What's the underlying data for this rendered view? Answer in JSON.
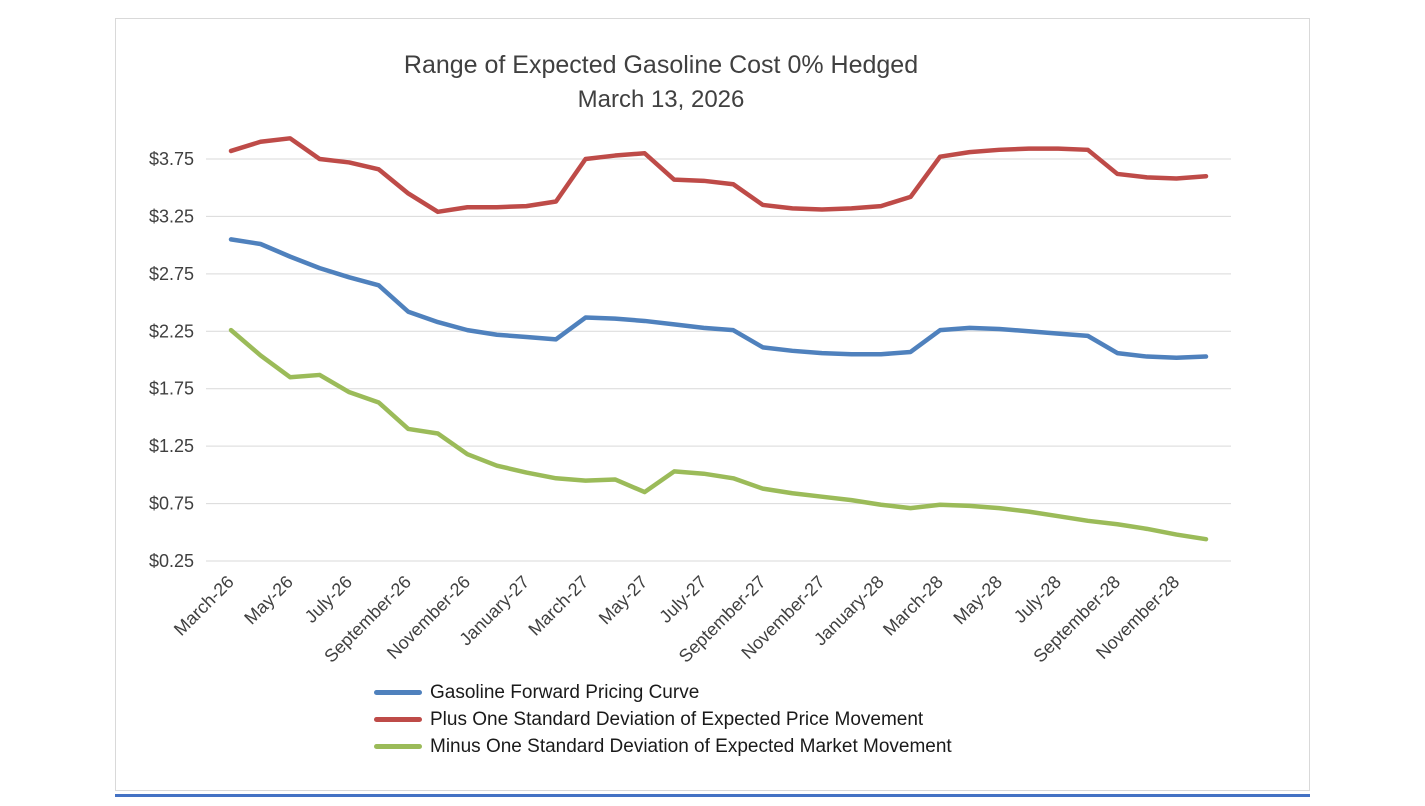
{
  "page": {
    "accent_rule_color": "#4472C4",
    "card_border_color": "#d9d9d9",
    "grid_color": "#d9d9d9",
    "axis_text_color": "#404040"
  },
  "chart_data": {
    "type": "line",
    "title": "Range of Expected Gasoline Cost 0% Hedged",
    "subtitle": "March 13, 2026",
    "grid": true,
    "legend_position": "bottom-left",
    "ylim": [
      0.25,
      3.75
    ],
    "y_ticks": [
      0.25,
      0.75,
      1.25,
      1.75,
      2.25,
      2.75,
      3.25,
      3.75
    ],
    "y_tick_labels": [
      "$0.25",
      "$0.75",
      "$1.25",
      "$1.75",
      "$2.25",
      "$2.75",
      "$3.25",
      "$3.75"
    ],
    "x": [
      "March-26",
      "April-26",
      "May-26",
      "June-26",
      "July-26",
      "August-26",
      "September-26",
      "October-26",
      "November-26",
      "December-26",
      "January-27",
      "February-27",
      "March-27",
      "April-27",
      "May-27",
      "June-27",
      "July-27",
      "August-27",
      "September-27",
      "October-27",
      "November-27",
      "December-27",
      "January-28",
      "February-28",
      "March-28",
      "April-28",
      "May-28",
      "June-28",
      "July-28",
      "August-28",
      "September-28",
      "October-28",
      "November-28",
      "December-28"
    ],
    "x_tick_every": 2,
    "x_tick_labels": [
      "March-26",
      "May-26",
      "July-26",
      "September-26",
      "November-26",
      "January-27",
      "March-27",
      "May-27",
      "July-27",
      "September-27",
      "November-27",
      "January-28",
      "March-28",
      "May-28",
      "July-28",
      "September-28",
      "November-28"
    ],
    "series": [
      {
        "name": "Gasoline Forward Pricing Curve",
        "color": "#4F81BD",
        "values": [
          3.05,
          3.01,
          2.9,
          2.8,
          2.72,
          2.65,
          2.42,
          2.33,
          2.26,
          2.22,
          2.2,
          2.18,
          2.37,
          2.36,
          2.34,
          2.31,
          2.28,
          2.26,
          2.11,
          2.08,
          2.06,
          2.05,
          2.05,
          2.07,
          2.26,
          2.28,
          2.27,
          2.25,
          2.23,
          2.21,
          2.06,
          2.03,
          2.02,
          2.03
        ]
      },
      {
        "name": "Plus One Standard Deviation of Expected Price Movement",
        "color": "#BE4B48",
        "values": [
          3.82,
          3.9,
          3.93,
          3.75,
          3.72,
          3.66,
          3.45,
          3.29,
          3.33,
          3.33,
          3.34,
          3.38,
          3.75,
          3.78,
          3.8,
          3.57,
          3.56,
          3.53,
          3.35,
          3.32,
          3.31,
          3.32,
          3.34,
          3.42,
          3.77,
          3.81,
          3.83,
          3.84,
          3.84,
          3.83,
          3.62,
          3.59,
          3.58,
          3.6
        ]
      },
      {
        "name": "Minus One Standard Deviation of Expected Market Movement",
        "color": "#9BBB59",
        "values": [
          2.26,
          2.04,
          1.85,
          1.87,
          1.72,
          1.63,
          1.4,
          1.36,
          1.18,
          1.08,
          1.02,
          0.97,
          0.95,
          0.96,
          0.85,
          1.03,
          1.01,
          0.97,
          0.88,
          0.84,
          0.81,
          0.78,
          0.74,
          0.71,
          0.74,
          0.73,
          0.71,
          0.68,
          0.64,
          0.6,
          0.57,
          0.53,
          0.48,
          0.44
        ]
      }
    ]
  }
}
